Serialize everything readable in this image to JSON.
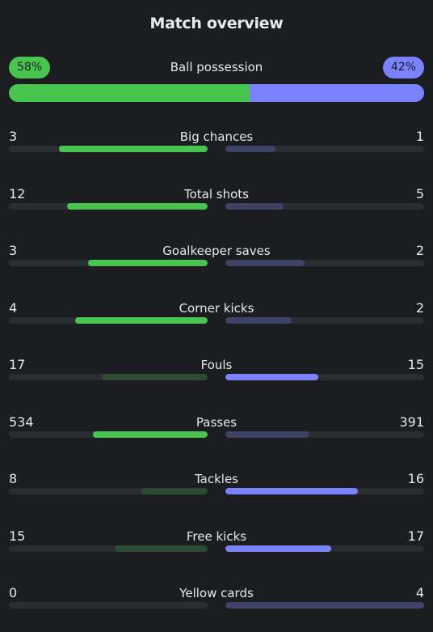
{
  "title": "Match overview",
  "colors": {
    "home_strong": "#47c54f",
    "home_weak": "#2d4a33",
    "away_strong": "#7b82ff",
    "away_weak": "#3e4366",
    "track": "#2a2d31",
    "background": "#1b1d20"
  },
  "possession": {
    "label": "Ball possession",
    "home": "58%",
    "away": "42%",
    "home_fraction": 0.58
  },
  "stats": [
    {
      "label": "Big chances",
      "home": "3",
      "away": "1",
      "home_fill": 0.75,
      "away_fill": 0.25,
      "leader": "home"
    },
    {
      "label": "Total shots",
      "home": "12",
      "away": "5",
      "home_fill": 0.706,
      "away_fill": 0.294,
      "leader": "home"
    },
    {
      "label": "Goalkeeper saves",
      "home": "3",
      "away": "2",
      "home_fill": 0.6,
      "away_fill": 0.4,
      "leader": "home"
    },
    {
      "label": "Corner kicks",
      "home": "4",
      "away": "2",
      "home_fill": 0.667,
      "away_fill": 0.333,
      "leader": "home"
    },
    {
      "label": "Fouls",
      "home": "17",
      "away": "15",
      "home_fill": 0.531,
      "away_fill": 0.469,
      "leader": "away"
    },
    {
      "label": "Passes",
      "home": "534",
      "away": "391",
      "home_fill": 0.577,
      "away_fill": 0.423,
      "leader": "home"
    },
    {
      "label": "Tackles",
      "home": "8",
      "away": "16",
      "home_fill": 0.333,
      "away_fill": 0.667,
      "leader": "away"
    },
    {
      "label": "Free kicks",
      "home": "15",
      "away": "17",
      "home_fill": 0.469,
      "away_fill": 0.531,
      "leader": "away"
    },
    {
      "label": "Yellow cards",
      "home": "0",
      "away": "4",
      "home_fill": 0.0,
      "away_fill": 1.0,
      "leader": "home"
    }
  ]
}
